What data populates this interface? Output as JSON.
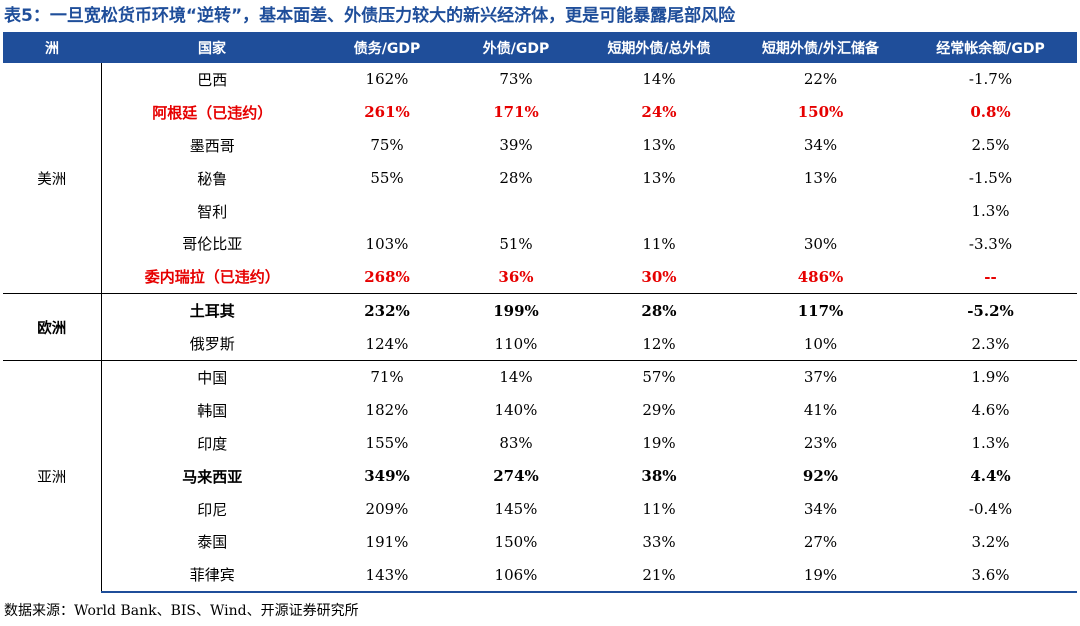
{
  "title": "表5：一旦宽松货币环境“逆转”，基本面差、外债压力较大的新兴经济体，更是可能暴露尾部风险",
  "headers": [
    "洲",
    "国家",
    "债务/GDP",
    "外债/GDP",
    "短期外债/总外债",
    "短期外债/外汇储备",
    "经常帐余额/GDP"
  ],
  "regions": [
    {
      "name": "美洲",
      "rows": [
        {
          "country": "巴西",
          "style": "normal",
          "values": [
            "162%",
            "73%",
            "14%",
            "22%",
            "-1.7%"
          ]
        },
        {
          "country": "阿根廷（已违约）",
          "style": "red",
          "values": [
            "261%",
            "171%",
            "24%",
            "150%",
            "0.8%"
          ]
        },
        {
          "country": "墨西哥",
          "style": "normal",
          "values": [
            "75%",
            "39%",
            "13%",
            "34%",
            "2.5%"
          ]
        },
        {
          "country": "秘鲁",
          "style": "normal",
          "values": [
            "55%",
            "28%",
            "13%",
            "13%",
            "-1.5%"
          ]
        },
        {
          "country": "智利",
          "style": "normal",
          "values": [
            "",
            "",
            "",
            "",
            "1.3%"
          ]
        },
        {
          "country": "哥伦比亚",
          "style": "normal",
          "values": [
            "103%",
            "51%",
            "11%",
            "30%",
            "-3.3%"
          ]
        },
        {
          "country": "委内瑞拉（已违约）",
          "style": "red",
          "values": [
            "268%",
            "36%",
            "30%",
            "486%",
            "--"
          ]
        }
      ]
    },
    {
      "name": "欧洲",
      "rows": [
        {
          "country": "土耳其",
          "style": "bold",
          "values": [
            "232%",
            "199%",
            "28%",
            "117%",
            "-5.2%"
          ]
        },
        {
          "country": "俄罗斯",
          "style": "normal",
          "values": [
            "124%",
            "110%",
            "12%",
            "10%",
            "2.3%"
          ]
        }
      ]
    },
    {
      "name": "亚洲",
      "rows": [
        {
          "country": "中国",
          "style": "normal",
          "values": [
            "71%",
            "14%",
            "57%",
            "37%",
            "1.9%"
          ]
        },
        {
          "country": "韩国",
          "style": "normal",
          "values": [
            "182%",
            "140%",
            "29%",
            "41%",
            "4.6%"
          ]
        },
        {
          "country": "印度",
          "style": "normal",
          "values": [
            "155%",
            "83%",
            "19%",
            "23%",
            "1.3%"
          ]
        },
        {
          "country": "马来西亚",
          "style": "bold",
          "values": [
            "349%",
            "274%",
            "38%",
            "92%",
            "4.4%"
          ]
        },
        {
          "country": "印尼",
          "style": "normal",
          "values": [
            "209%",
            "145%",
            "11%",
            "34%",
            "-0.4%"
          ]
        },
        {
          "country": "泰国",
          "style": "normal",
          "values": [
            "191%",
            "150%",
            "33%",
            "27%",
            "3.2%"
          ]
        },
        {
          "country": "菲律宾",
          "style": "normal",
          "values": [
            "143%",
            "106%",
            "21%",
            "19%",
            "3.6%"
          ]
        }
      ]
    }
  ],
  "source": "数据来源：World Bank、BIS、Wind、开源证券研究所",
  "colors": {
    "header_bg": "#1f4e9a",
    "title": "#1f4e9a",
    "highlight_red": "#e60000"
  }
}
